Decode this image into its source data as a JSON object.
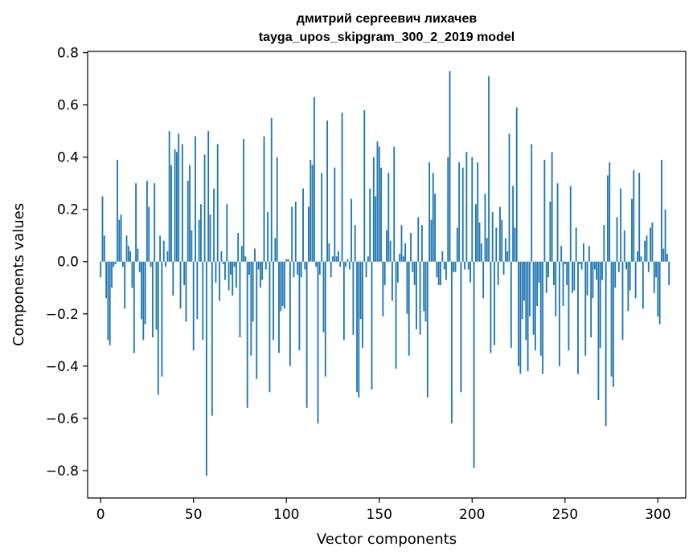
{
  "chart_data": {
    "type": "bar",
    "title": [
      "дмитрий сергеевич лихачев",
      "tayga_upos_skipgram_300_2_2019 model"
    ],
    "xlabel": "Vector components",
    "ylabel": "Components values",
    "xlim": [
      -7,
      315
    ],
    "ylim": [
      -0.905,
      0.805
    ],
    "xticks": [
      0,
      50,
      100,
      150,
      200,
      250,
      300
    ],
    "xtick_labels": [
      "0",
      "50",
      "100",
      "150",
      "200",
      "250",
      "300"
    ],
    "yticks": [
      -0.8,
      -0.6,
      -0.4,
      -0.2,
      0.0,
      0.2,
      0.4,
      0.6,
      0.8
    ],
    "ytick_labels": [
      "−0.8",
      "−0.6",
      "−0.4",
      "−0.2",
      "0.0",
      "0.2",
      "0.4",
      "0.6",
      "0.8"
    ],
    "bar_color": "#1f77b4",
    "grid": false,
    "values": [
      -0.06,
      0.25,
      0.1,
      -0.14,
      -0.3,
      -0.32,
      -0.1,
      -0.02,
      -0.01,
      0.39,
      0.16,
      0.18,
      -0.02,
      -0.18,
      0.1,
      0.06,
      0.04,
      -0.1,
      -0.35,
      0.3,
      0.05,
      -0.04,
      -0.22,
      -0.3,
      -0.24,
      0.31,
      0.21,
      -0.02,
      -0.29,
      0.3,
      -0.26,
      -0.51,
      0.1,
      -0.44,
      0.08,
      -0.02,
      0.04,
      0.5,
      0.37,
      -0.13,
      0.43,
      0.42,
      0.49,
      -0.18,
      0.45,
      -0.09,
      -0.23,
      0.31,
      0.37,
      0.12,
      -0.34,
      0.48,
      -0.22,
      0.16,
      0.22,
      -0.3,
      0.41,
      -0.82,
      0.5,
      0.18,
      -0.59,
      0.28,
      -0.08,
      0.45,
      -0.15,
      0.04,
      -0.01,
      -0.07,
      0.22,
      -0.11,
      -0.05,
      -0.13,
      -0.02,
      -0.1,
      0.11,
      -0.29,
      0.06,
      0.47,
      0.02,
      -0.56,
      -0.05,
      -0.36,
      -0.23,
      0.05,
      -0.45,
      -0.03,
      -0.1,
      -0.07,
      0.48,
      -0.03,
      0.19,
      -0.5,
      0.55,
      -0.3,
      0.09,
      0.4,
      -0.35,
      -0.19,
      -0.17,
      -0.18,
      0.01,
      0.01,
      -0.4,
      0.21,
      -0.06,
      0.23,
      -0.05,
      -0.34,
      -0.06,
      0.28,
      -0.03,
      -0.56,
      0.21,
      0.39,
      0.37,
      0.63,
      -0.02,
      -0.62,
      -0.05,
      0.34,
      -0.27,
      -0.44,
      0.54,
      0.07,
      -0.06,
      0.02,
      0.36,
      0.02,
      0.04,
      -0.02,
      0.57,
      -0.3,
      -0.02,
      0.01,
      -0.03,
      0.24,
      -0.28,
      0.14,
      -0.5,
      -0.52,
      -0.22,
      -0.33,
      0.58,
      -0.06,
      0.02,
      0.28,
      -0.49,
      0.4,
      0.25,
      0.46,
      0.44,
      0.36,
      -0.21,
      -0.09,
      0.12,
      0.34,
      0.08,
      -0.15,
      0.44,
      -0.41,
      -0.08,
      0.03,
      0.14,
      0.02,
      0.07,
      -0.2,
      -0.36,
      0.11,
      -0.04,
      -0.09,
      -0.26,
      0.17,
      -0.28,
      0.14,
      -0.19,
      -0.23,
      -0.52,
      0.38,
      0.16,
      0.34,
      0.26,
      -0.06,
      -0.09,
      -0.09,
      0.04,
      -0.03,
      -0.07,
      0.4,
      0.73,
      -0.62,
      -0.04,
      -0.04,
      0.13,
      0.38,
      -0.5,
      0.36,
      -0.03,
      0.42,
      -0.03,
      -0.08,
      0.4,
      -0.79,
      0.22,
      0.38,
      0.15,
      0.07,
      -0.14,
      0.26,
      0.09,
      0.71,
      -0.35,
      0.19,
      -0.32,
      0.13,
      -0.09,
      0.21,
      0.16,
      -0.05,
      0.09,
      0.04,
      0.49,
      -0.33,
      0.29,
      0.13,
      0.59,
      -0.4,
      -0.43,
      -0.22,
      -0.15,
      -0.3,
      -0.42,
      -0.21,
      0.45,
      -0.28,
      -0.34,
      -0.17,
      -0.08,
      -0.36,
      -0.43,
      0.39,
      -0.12,
      -0.06,
      0.23,
      0.42,
      -0.09,
      -0.21,
      0.3,
      -0.4,
      0.06,
      -0.17,
      -0.01,
      -0.09,
      -0.34,
      0.29,
      -0.12,
      -0.11,
      0.13,
      -0.43,
      -0.01,
      -0.03,
      0.07,
      -0.36,
      -0.13,
      0.06,
      -0.29,
      -0.14,
      -0.03,
      -0.07,
      -0.53,
      -0.33,
      -0.07,
      0.14,
      -0.63,
      0.33,
      0.38,
      -0.44,
      -0.48,
      -0.1,
      0.17,
      -0.04,
      0.28,
      -0.3,
      0.12,
      -0.03,
      -0.19,
      -0.11,
      0.24,
      0.35,
      -0.14,
      0.04,
      0.34,
      0.02,
      -0.18,
      0.08,
      0.1,
      -0.04,
      0.13,
      0.15,
      -0.12,
      -0.06,
      -0.21,
      -0.24,
      0.39,
      0.05,
      0.2,
      0.03,
      -0.09
    ]
  }
}
